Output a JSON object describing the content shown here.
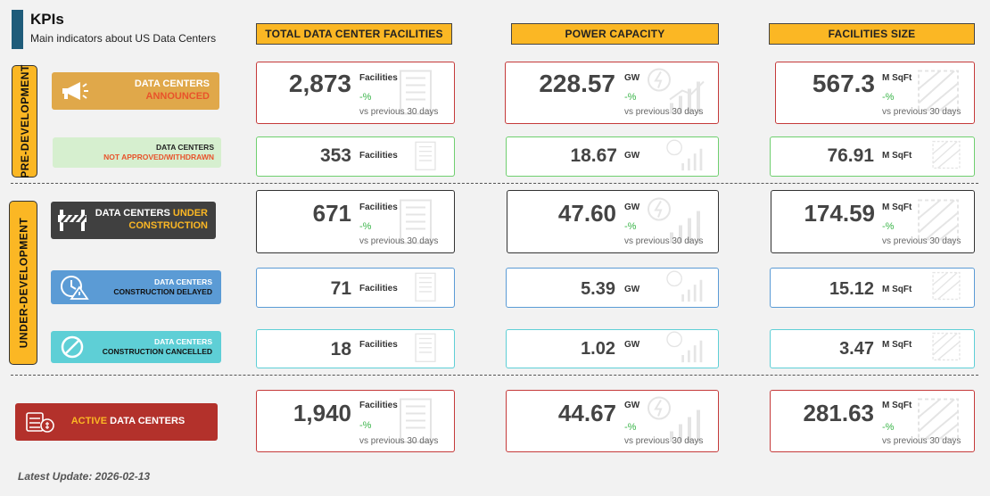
{
  "header": {
    "title": "KPIs",
    "subtitle": "Main indicators about US Data Centers"
  },
  "columns": {
    "facilities": "TOTAL DATA CENTER FACILITIES",
    "power": "POWER CAPACITY",
    "size": "FACILITIES SIZE"
  },
  "sections": {
    "pre": "PRE-DEVELOPMENT",
    "under": "UNDER-DEVELOPMENT"
  },
  "categories": {
    "announced": {
      "line1": "DATA CENTERS",
      "line2": "ANNOUNCED"
    },
    "not_approved": {
      "line1": "DATA CENTERS",
      "line2": "NOT APPROVED/WITHDRAWN"
    },
    "under_construction": {
      "line1a": "DATA CENTERS ",
      "line1b": "UNDER",
      "line2": "CONSTRUCTION"
    },
    "delayed": {
      "line1": "DATA CENTERS",
      "line2": "CONSTRUCTION DELAYED"
    },
    "cancelled": {
      "line1": "DATA CENTERS",
      "line2": "CONSTRUCTION CANCELLED"
    },
    "active": {
      "a": "ACTIVE",
      "b": " DATA CENTERS"
    }
  },
  "units": {
    "facilities": "Facilities",
    "gw": "GW",
    "sqft": "M SqFt"
  },
  "change": {
    "pct": "-%",
    "prev": "vs previous 30 days"
  },
  "kpis": {
    "announced": {
      "facilities": "2,873",
      "power": "228.57",
      "size": "567.3"
    },
    "not_approved": {
      "facilities": "353",
      "power": "18.67",
      "size": "76.91"
    },
    "under_construction": {
      "facilities": "671",
      "power": "47.60",
      "size": "174.59"
    },
    "delayed": {
      "facilities": "71",
      "power": "5.39",
      "size": "15.12"
    },
    "cancelled": {
      "facilities": "18",
      "power": "1.02",
      "size": "3.47"
    },
    "active": {
      "facilities": "1,940",
      "power": "44.67",
      "size": "281.63"
    }
  },
  "colors": {
    "accent": "#fbb724",
    "announced": "#e0a84a",
    "not_approved": "#d6efcf",
    "under_construction": "#404040",
    "delayed": "#5b9bd5",
    "cancelled": "#5ecfd6",
    "active": "#b3312b",
    "positive": "#3bb54a"
  },
  "icons": {
    "announced": "megaphone-icon",
    "under_construction": "barrier-icon",
    "delayed": "clock-warning-icon",
    "cancelled": "prohibited-icon",
    "active": "server-money-icon"
  },
  "footer": {
    "latest_update": "Latest Update: 2026-02-13"
  }
}
